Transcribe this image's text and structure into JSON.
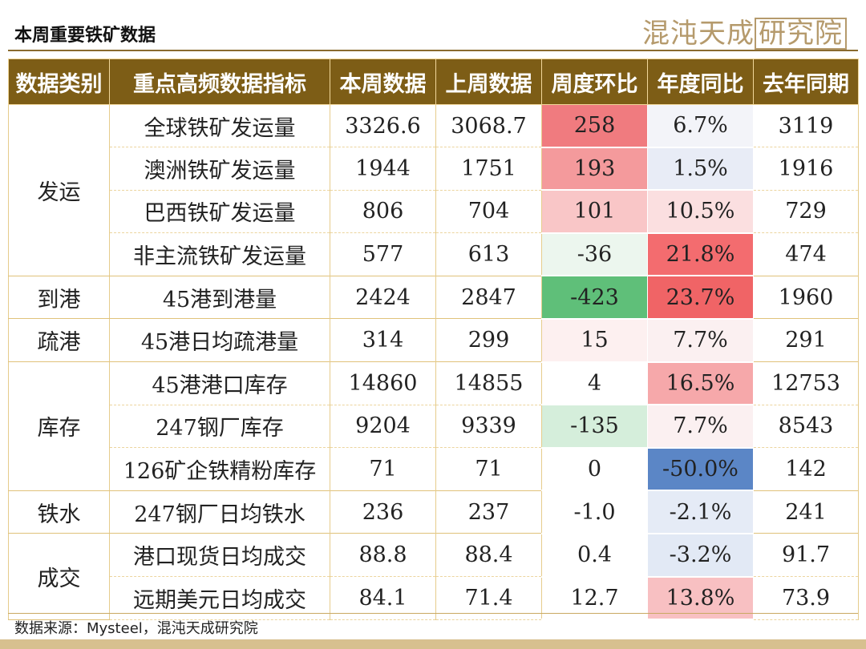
{
  "header": {
    "title": "本周重要铁矿数据",
    "brand": "混沌天成",
    "brand_boxed": "研究院"
  },
  "table": {
    "columns": [
      "数据类别",
      "重点高频数据指标",
      "本周数据",
      "上周数据",
      "周度环比",
      "年度同比",
      "去年同期"
    ],
    "groups": [
      {
        "category": "发运",
        "rows": [
          {
            "indicator": "全球铁矿发运量",
            "this_week": "3326.6",
            "last_week": "3068.7",
            "wow": "258",
            "yoy": "6.7%",
            "last_year": "3119",
            "wow_color": "#f07b7f",
            "yoy_color": "#f3f4f9"
          },
          {
            "indicator": "澳洲铁矿发运量",
            "this_week": "1944",
            "last_week": "1751",
            "wow": "193",
            "yoy": "1.5%",
            "last_year": "1916",
            "wow_color": "#f49a9c",
            "yoy_color": "#e8ecf6"
          },
          {
            "indicator": "巴西铁矿发运量",
            "this_week": "806",
            "last_week": "704",
            "wow": "101",
            "yoy": "10.5%",
            "last_year": "729",
            "wow_color": "#f9c6c7",
            "yoy_color": "#fbdfe0"
          },
          {
            "indicator": "非主流铁矿发运量",
            "this_week": "577",
            "last_week": "613",
            "wow": "-36",
            "yoy": "21.8%",
            "last_year": "474",
            "wow_color": "#ecf6ee",
            "yoy_color": "#f36c6f"
          }
        ]
      },
      {
        "category": "到港",
        "rows": [
          {
            "indicator": "45港到港量",
            "this_week": "2424",
            "last_week": "2847",
            "wow": "-423",
            "yoy": "23.7%",
            "last_year": "1960",
            "wow_color": "#5fbf79",
            "yoy_color": "#f06466"
          }
        ]
      },
      {
        "category": "疏港",
        "rows": [
          {
            "indicator": "45港日均疏港量",
            "this_week": "314",
            "last_week": "299",
            "wow": "15",
            "yoy": "7.7%",
            "last_year": "291",
            "wow_color": "#fdf0f0",
            "yoy_color": "#fbf0f1"
          }
        ]
      },
      {
        "category": "库存",
        "rows": [
          {
            "indicator": "45港港口库存",
            "this_week": "14860",
            "last_week": "14855",
            "wow": "4",
            "yoy": "16.5%",
            "last_year": "12753",
            "wow_color": "#ffffff",
            "yoy_color": "#f6a8aa"
          },
          {
            "indicator": "247钢厂库存",
            "this_week": "9204",
            "last_week": "9339",
            "wow": "-135",
            "yoy": "7.7%",
            "last_year": "8543",
            "wow_color": "#d5eedb",
            "yoy_color": "#fbf0f1"
          },
          {
            "indicator": "126矿企铁精粉库存",
            "this_week": "71",
            "last_week": "71",
            "wow": "0",
            "yoy": "-50.0%",
            "last_year": "142",
            "wow_color": "#ffffff",
            "yoy_color": "#5b86c6"
          }
        ]
      },
      {
        "category": "铁水",
        "rows": [
          {
            "indicator": "247钢厂日均铁水",
            "this_week": "236",
            "last_week": "237",
            "wow": "-1.0",
            "yoy": "-2.1%",
            "last_year": "241",
            "wow_color": "#ffffff",
            "yoy_color": "#e5ebf6"
          }
        ]
      },
      {
        "category": "成交",
        "rows": [
          {
            "indicator": "港口现货日均成交",
            "this_week": "88.8",
            "last_week": "88.4",
            "wow": "0.4",
            "yoy": "-3.2%",
            "last_year": "91.7",
            "wow_color": "#ffffff",
            "yoy_color": "#e2e9f5"
          },
          {
            "indicator": "远期美元日均成交",
            "this_week": "84.1",
            "last_week": "71.4",
            "wow": "12.7",
            "yoy": "13.8%",
            "last_year": "73.9",
            "wow_color": "#ffffff",
            "yoy_color": "#f8c0c2"
          }
        ]
      }
    ]
  },
  "footer": {
    "source": "数据来源：Mysteel，混沌天成研究院"
  }
}
